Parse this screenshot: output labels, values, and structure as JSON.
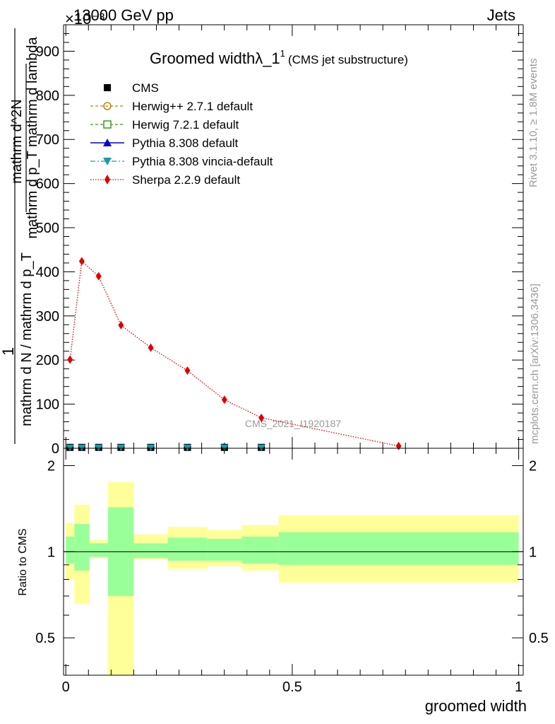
{
  "header": {
    "left": "13000 GeV pp",
    "right": "Jets",
    "exponent": "×10⁻³"
  },
  "side_text": {
    "rivet": "Rivet 3.1.10, ≥ 1.8M events",
    "mcplots": "mcplots.cern.ch [arXiv:1306.3436]"
  },
  "watermark": "CMS_2021_I1920187",
  "colors": {
    "herwigpp": "#b8860b",
    "herwig7": "#3a9a1a",
    "pythia": "#0000cc",
    "vincia": "#1a9aaa",
    "sherpa": "#dd0000",
    "band_outer": "#ffff99",
    "band_inner": "#99ff99"
  },
  "chart_data": [
    {
      "type": "line",
      "title_main": "Groomed width",
      "title_symbol": "λ_1",
      "title_sup": "1",
      "title_paren": "(CMS jet substructure)",
      "ylabel": {
        "prefix": "1",
        "denominator": "mathrm d N / mathrm d p_T",
        "numerator_line1": "mathrm d^2N",
        "numerator_line2": "mathrm d p_T mathrm d lambda"
      },
      "ylim": [
        0,
        960
      ],
      "yticks": [
        "0",
        "100",
        "200",
        "300",
        "400",
        "500",
        "600",
        "700",
        "800",
        "900"
      ],
      "xlim": [
        -0.005,
        1.01
      ],
      "legend_placement": "top-left",
      "legend": [
        "CMS",
        "Herwig++ 2.7.1 default",
        "Herwig 7.2.1 default",
        "Pythia 8.308 default",
        "Pythia 8.308 vincia-default",
        "Sherpa 2.2.9 default"
      ],
      "series": [
        {
          "name": "Sherpa 2.2.9 default",
          "style": "dotted-diamond",
          "x": [
            0.0093,
            0.0353,
            0.0725,
            0.1218,
            0.1876,
            0.2686,
            0.3503,
            0.4318,
            0.7349
          ],
          "values": [
            201,
            424,
            390,
            279,
            228,
            176,
            110,
            69,
            5
          ]
        },
        {
          "name": "CMS",
          "style": "square",
          "x": [
            0.0093,
            0.0353,
            0.0725,
            0.1218,
            0.1876,
            0.2686,
            0.3503,
            0.4318
          ],
          "values": [
            2,
            2,
            2,
            2,
            2,
            2,
            2,
            2
          ]
        },
        {
          "name": "Pythia 8.308 vincia-default",
          "style": "triangle-down",
          "x": [
            0.0093,
            0.0353,
            0.0725,
            0.1218,
            0.1876,
            0.2686,
            0.3503,
            0.4318
          ],
          "values": [
            2,
            2,
            2,
            2,
            2,
            2,
            2,
            2
          ]
        }
      ]
    },
    {
      "type": "area",
      "ylabel": "Ratio to CMS",
      "xlabel": "groomed width",
      "ylim": [
        0.37,
        2.3
      ],
      "yscale": "log",
      "yticks": [
        "0.5",
        "1",
        "2"
      ],
      "xticks": [
        "0",
        "0.5",
        "1"
      ],
      "bins": [
        {
          "x0": 0.0,
          "x1": 0.019,
          "inner": [
            0.91,
            1.13
          ],
          "outer": [
            0.8,
            1.26
          ]
        },
        {
          "x0": 0.019,
          "x1": 0.052,
          "inner": [
            0.86,
            1.25
          ],
          "outer": [
            0.66,
            1.46
          ]
        },
        {
          "x0": 0.052,
          "x1": 0.093,
          "inner": [
            0.96,
            1.07
          ],
          "outer": [
            0.95,
            1.1
          ]
        },
        {
          "x0": 0.093,
          "x1": 0.15,
          "inner": [
            0.7,
            1.43
          ],
          "outer": [
            0.37,
            1.75
          ]
        },
        {
          "x0": 0.15,
          "x1": 0.225,
          "inner": [
            0.95,
            1.07
          ],
          "outer": [
            0.94,
            1.15
          ]
        },
        {
          "x0": 0.225,
          "x1": 0.312,
          "inner": [
            0.93,
            1.12
          ],
          "outer": [
            0.87,
            1.22
          ]
        },
        {
          "x0": 0.312,
          "x1": 0.389,
          "inner": [
            0.93,
            1.11
          ],
          "outer": [
            0.89,
            1.19
          ]
        },
        {
          "x0": 0.389,
          "x1": 0.47,
          "inner": [
            0.91,
            1.13
          ],
          "outer": [
            0.86,
            1.24
          ]
        },
        {
          "x0": 0.47,
          "x1": 1.0,
          "inner": [
            0.9,
            1.17
          ],
          "outer": [
            0.78,
            1.34
          ]
        }
      ]
    }
  ]
}
